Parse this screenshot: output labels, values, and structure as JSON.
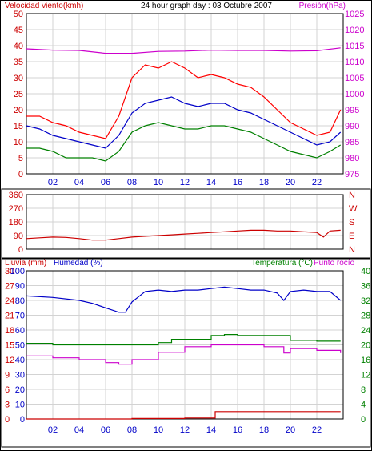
{
  "chart_data": [
    {
      "type": "line",
      "title": "24 hour graph day : 03 Octubre 2007",
      "left_label": "Velocidad viento(kmh)",
      "right_label": "Presión(hPa)",
      "x_ticks": [
        "02",
        "04",
        "06",
        "08",
        "10",
        "12",
        "14",
        "16",
        "18",
        "20",
        "22"
      ],
      "y_left_ticks": [
        "0",
        "5",
        "10",
        "15",
        "20",
        "25",
        "30",
        "35",
        "40",
        "45",
        "50"
      ],
      "y_left_range": [
        0,
        50
      ],
      "y_right_ticks": [
        "975",
        "980",
        "985",
        "990",
        "995",
        "1000",
        "1005",
        "1010",
        "1015",
        "1020",
        "1025"
      ],
      "y_right_range": [
        975,
        1025
      ],
      "grid": true,
      "series": [
        {
          "name": "gust",
          "axis": "left",
          "color": "#ff0000",
          "x": [
            0,
            1,
            2,
            3,
            4,
            5,
            6,
            7,
            8,
            9,
            10,
            11,
            12,
            13,
            14,
            15,
            16,
            17,
            18,
            19,
            20,
            21,
            22,
            23,
            23.8
          ],
          "y": [
            18,
            18,
            16,
            15,
            13,
            12,
            11,
            18,
            30,
            34,
            33,
            35,
            33,
            30,
            31,
            30,
            28,
            27,
            24,
            20,
            16,
            14,
            12,
            13,
            20
          ]
        },
        {
          "name": "avg",
          "axis": "left",
          "color": "#0000c8",
          "x": [
            0,
            1,
            2,
            3,
            4,
            5,
            6,
            7,
            8,
            9,
            10,
            11,
            12,
            13,
            14,
            15,
            16,
            17,
            18,
            19,
            20,
            21,
            22,
            23,
            23.8
          ],
          "y": [
            15,
            14,
            12,
            11,
            10,
            9,
            8,
            12,
            19,
            22,
            23,
            24,
            22,
            21,
            22,
            22,
            20,
            19,
            17,
            15,
            13,
            11,
            9,
            10,
            13
          ]
        },
        {
          "name": "min",
          "axis": "left",
          "color": "#008000",
          "x": [
            0,
            1,
            2,
            3,
            4,
            5,
            6,
            7,
            8,
            9,
            10,
            11,
            12,
            13,
            14,
            15,
            16,
            17,
            18,
            19,
            20,
            21,
            22,
            23,
            23.8
          ],
          "y": [
            8,
            8,
            7,
            5,
            5,
            5,
            4,
            7,
            13,
            15,
            16,
            15,
            14,
            14,
            15,
            15,
            14,
            13,
            11,
            9,
            7,
            6,
            5,
            7,
            9
          ]
        },
        {
          "name": "pressure",
          "axis": "right",
          "color": "#cc00cc",
          "x": [
            0,
            2,
            4,
            6,
            8,
            10,
            12,
            14,
            16,
            18,
            20,
            22,
            23.8
          ],
          "y": [
            1014,
            1013.6,
            1013.5,
            1012.6,
            1012.6,
            1013.2,
            1013.3,
            1013.6,
            1013.5,
            1013.5,
            1013.3,
            1013.4,
            1014.3
          ]
        }
      ]
    },
    {
      "type": "line",
      "title": "",
      "right_label": "NWSEN",
      "right_compass": [
        "N",
        "W",
        "S",
        "E",
        "N"
      ],
      "x_ticks": [],
      "y_left_ticks": [
        "0",
        "90",
        "180",
        "270",
        "360"
      ],
      "y_left_range": [
        0,
        360
      ],
      "grid": true,
      "series": [
        {
          "name": "direction",
          "axis": "left",
          "color": "#cc0000",
          "x": [
            0,
            1,
            2,
            3,
            4,
            5,
            6,
            7,
            8,
            9,
            10,
            11,
            12,
            13,
            14,
            15,
            16,
            17,
            18,
            19,
            20,
            21,
            22,
            22.5,
            23,
            23.8
          ],
          "y": [
            70,
            75,
            80,
            78,
            70,
            60,
            60,
            70,
            80,
            85,
            90,
            95,
            100,
            105,
            110,
            115,
            120,
            125,
            125,
            120,
            120,
            115,
            110,
            80,
            120,
            125
          ]
        }
      ]
    },
    {
      "type": "line",
      "title": "",
      "left_label_1": "Lluvia (mm)",
      "left_label_2": "Humedad (%)",
      "right_label_1": "Temperatura (°C)",
      "right_label_2": "Punto rocío",
      "x_ticks": [
        "02",
        "04",
        "06",
        "08",
        "10",
        "12",
        "14",
        "16",
        "18",
        "20",
        "22"
      ],
      "y_rain_ticks": [
        "0",
        "3",
        "6",
        "9",
        "12",
        "15",
        "18",
        "21",
        "24",
        "27",
        "30"
      ],
      "y_rain_range": [
        0,
        30
      ],
      "y_hum_ticks": [
        "0",
        "10",
        "20",
        "30",
        "40",
        "50",
        "60",
        "70",
        "80",
        "90",
        "100"
      ],
      "y_hum_range": [
        0,
        100
      ],
      "y_temp_ticks": [
        "0",
        "4",
        "8",
        "12",
        "16",
        "20",
        "24",
        "28",
        "32",
        "36",
        "40"
      ],
      "y_temp_range": [
        0,
        40
      ],
      "grid": true,
      "series": [
        {
          "name": "rain",
          "axis": "rain",
          "color": "#cc0000",
          "x": [
            0,
            4,
            8,
            12,
            14.2,
            14.3,
            23.8
          ],
          "y": [
            0,
            0,
            0.1,
            0.2,
            0.2,
            1.5,
            1.5
          ]
        },
        {
          "name": "humidity",
          "axis": "hum",
          "color": "#0000c8",
          "x": [
            0,
            2,
            4,
            5,
            6,
            7,
            7.5,
            8,
            9,
            10,
            11,
            12,
            13,
            14,
            15,
            16,
            17,
            18,
            19,
            19.5,
            20,
            21,
            22,
            23,
            23.8
          ],
          "y": [
            83,
            82,
            80,
            78,
            75,
            72,
            72,
            79,
            86,
            87,
            86,
            87,
            87,
            88,
            89,
            88,
            87,
            87,
            85,
            80,
            86,
            87,
            86,
            86,
            80
          ]
        },
        {
          "name": "temperature",
          "axis": "temp",
          "color": "#008000",
          "x": [
            0,
            2,
            4,
            6,
            8,
            10,
            11,
            12,
            14,
            15,
            16,
            18,
            20,
            22,
            23.8
          ],
          "y": [
            20.4,
            20,
            20,
            20,
            20,
            20.6,
            21.5,
            21.5,
            22.5,
            22.8,
            22.5,
            22.5,
            21.2,
            21,
            21
          ]
        },
        {
          "name": "dewpoint",
          "axis": "temp",
          "color": "#cc00cc",
          "x": [
            0,
            2,
            4,
            6,
            7,
            8,
            10,
            12,
            14,
            16,
            18,
            19,
            19.5,
            20,
            22,
            23.8
          ],
          "y": [
            17,
            16.5,
            16,
            15.2,
            14.8,
            16,
            18,
            19.5,
            20,
            20,
            19.5,
            19.5,
            17.8,
            19,
            18.5,
            17.8
          ]
        }
      ]
    }
  ]
}
